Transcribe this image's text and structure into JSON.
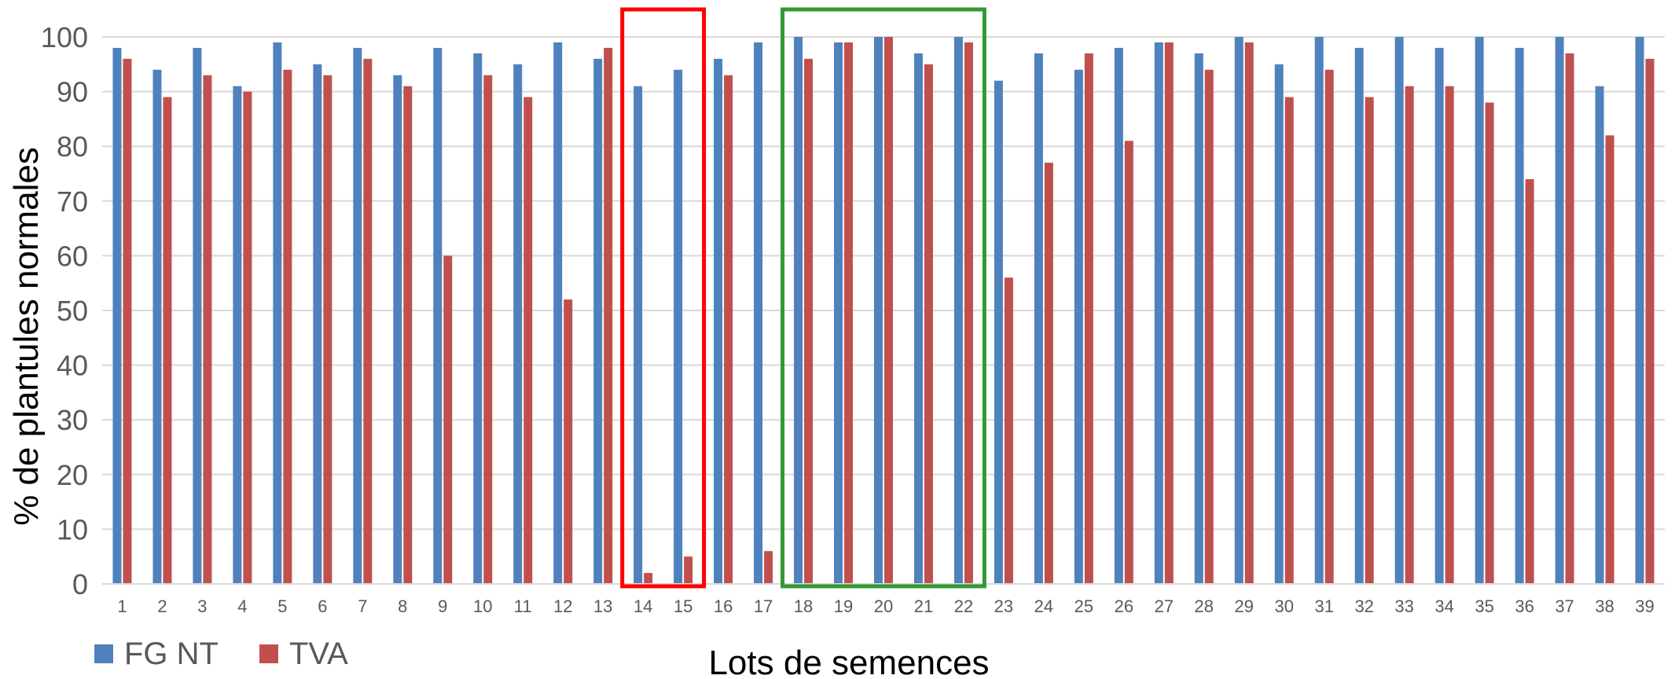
{
  "chart_data": {
    "type": "bar",
    "title": "",
    "xlabel": "Lots de semences",
    "ylabel": "% de plantules normales",
    "ylim": [
      0,
      100
    ],
    "yticks": [
      0,
      10,
      20,
      30,
      40,
      50,
      60,
      70,
      80,
      90,
      100
    ],
    "grid": true,
    "legend_position": "bottom-left",
    "categories": [
      "1",
      "2",
      "3",
      "4",
      "5",
      "6",
      "7",
      "8",
      "9",
      "10",
      "11",
      "12",
      "13",
      "14",
      "15",
      "16",
      "17",
      "18",
      "19",
      "20",
      "21",
      "22",
      "23",
      "24",
      "25",
      "26",
      "27",
      "28",
      "29",
      "30",
      "31",
      "32",
      "33",
      "34",
      "35",
      "36",
      "37",
      "38",
      "39"
    ],
    "series": [
      {
        "name": "FG NT",
        "color": "#4F81BD",
        "values": [
          98,
          94,
          98,
          91,
          99,
          95,
          98,
          93,
          98,
          97,
          95,
          99,
          96,
          91,
          94,
          96,
          99,
          100,
          99,
          100,
          97,
          100,
          92,
          97,
          94,
          98,
          99,
          97,
          100,
          95,
          100,
          98,
          100,
          98,
          100,
          98,
          100,
          91,
          100
        ]
      },
      {
        "name": "TVA",
        "color": "#C0504D",
        "values": [
          96,
          89,
          93,
          90,
          94,
          93,
          96,
          91,
          60,
          93,
          89,
          52,
          98,
          2,
          5,
          93,
          6,
          96,
          99,
          100,
          95,
          99,
          56,
          77,
          97,
          81,
          99,
          94,
          99,
          89,
          94,
          89,
          91,
          91,
          88,
          74,
          97,
          82,
          96
        ]
      }
    ],
    "highlight_boxes": [
      {
        "from_category": "14",
        "to_category": "15",
        "color": "#FF0000"
      },
      {
        "from_category": "18",
        "to_category": "22",
        "color": "#339933"
      }
    ]
  }
}
